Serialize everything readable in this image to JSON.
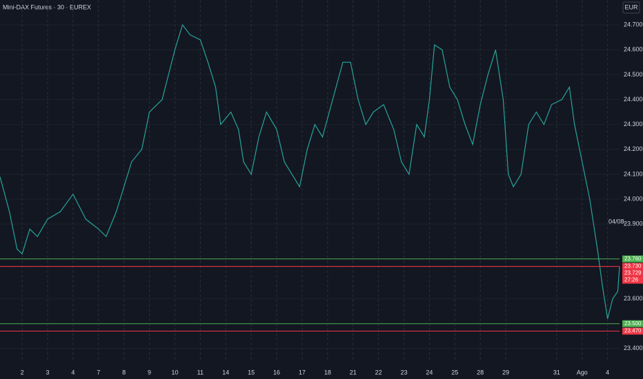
{
  "chart_data": {
    "type": "line",
    "title": "Mini-DAX Futures · 30 · EUREX",
    "currency": "EUR",
    "annotation": "04/08.",
    "x": [
      -0.87,
      -0.5,
      -0.2,
      0.0,
      0.3,
      0.6,
      1.0,
      1.5,
      2.0,
      2.5,
      3.0,
      3.3,
      3.7,
      4.0,
      4.3,
      4.7,
      5.0,
      5.5,
      6.0,
      6.3,
      6.6,
      7.0,
      7.3,
      7.6,
      7.8,
      8.2,
      8.5,
      8.7,
      9.0,
      9.3,
      9.6,
      10.0,
      10.3,
      10.6,
      10.9,
      11.2,
      11.5,
      11.8,
      12.2,
      12.6,
      12.9,
      13.2,
      13.5,
      13.8,
      14.2,
      14.6,
      14.9,
      15.2,
      15.5,
      15.8,
      16.0,
      16.2,
      16.5,
      16.8,
      17.1,
      17.4,
      17.7,
      18.0,
      18.3,
      18.6,
      18.9,
      19.1,
      19.3,
      19.6,
      19.9,
      20.2,
      20.5,
      20.8,
      21.2,
      21.5,
      21.7,
      22.0,
      22.3,
      22.6,
      22.8,
      23.0,
      23.2,
      23.4,
      23.47
    ],
    "series": [
      {
        "color": "#26a69a",
        "values": [
          24.09,
          23.95,
          23.8,
          23.78,
          23.88,
          23.85,
          23.92,
          23.95,
          24.02,
          23.92,
          23.88,
          23.85,
          23.95,
          24.05,
          24.15,
          24.2,
          24.35,
          24.4,
          24.6,
          24.7,
          24.66,
          24.64,
          24.55,
          24.45,
          24.3,
          24.35,
          24.28,
          24.15,
          24.1,
          24.25,
          24.35,
          24.28,
          24.15,
          24.1,
          24.05,
          24.2,
          24.3,
          24.25,
          24.4,
          24.55,
          24.55,
          24.4,
          24.3,
          24.35,
          24.38,
          24.28,
          24.15,
          24.1,
          24.3,
          24.25,
          24.4,
          24.62,
          24.6,
          24.45,
          24.4,
          24.3,
          24.22,
          24.38,
          24.5,
          24.6,
          24.4,
          24.1,
          24.05,
          24.1,
          24.3,
          24.35,
          24.3,
          24.38,
          24.4,
          24.45,
          24.3,
          24.15,
          24.0,
          23.8,
          23.65,
          23.52,
          23.6,
          23.63,
          23.729
        ]
      }
    ],
    "xlim": [
      -0.87,
      23.47
    ],
    "ylim": [
      23.347,
      24.8
    ],
    "grid": true,
    "xticks": [
      {
        "value": 0,
        "label": "2"
      },
      {
        "value": 1,
        "label": "3"
      },
      {
        "value": 2,
        "label": "4"
      },
      {
        "value": 3,
        "label": "7"
      },
      {
        "value": 4,
        "label": "8"
      },
      {
        "value": 5,
        "label": "9"
      },
      {
        "value": 6,
        "label": "10"
      },
      {
        "value": 7,
        "label": "11"
      },
      {
        "value": 8,
        "label": "14"
      },
      {
        "value": 9,
        "label": "15"
      },
      {
        "value": 10,
        "label": "16"
      },
      {
        "value": 11,
        "label": "17"
      },
      {
        "value": 12,
        "label": "18"
      },
      {
        "value": 13,
        "label": "21"
      },
      {
        "value": 14,
        "label": "22"
      },
      {
        "value": 15,
        "label": "23"
      },
      {
        "value": 16,
        "label": "24"
      },
      {
        "value": 17,
        "label": "25"
      },
      {
        "value": 18,
        "label": "28"
      },
      {
        "value": 19,
        "label": "29"
      },
      {
        "value": 21,
        "label": "31"
      },
      {
        "value": 22,
        "label": "Ago"
      },
      {
        "value": 23,
        "label": "4"
      }
    ],
    "yticks": [
      {
        "value": 24.7,
        "label": "24.700"
      },
      {
        "value": 24.6,
        "label": "24.600"
      },
      {
        "value": 24.5,
        "label": "24.500"
      },
      {
        "value": 24.4,
        "label": "24.400"
      },
      {
        "value": 24.3,
        "label": "24.300"
      },
      {
        "value": 24.2,
        "label": "24.200"
      },
      {
        "value": 24.1,
        "label": "24.100"
      },
      {
        "value": 24.0,
        "label": "24.000"
      },
      {
        "value": 23.9,
        "label": "23.900"
      },
      {
        "value": 23.6,
        "label": "23.600"
      },
      {
        "value": 23.4,
        "label": "23.400"
      }
    ],
    "levels": [
      {
        "value": 23.76,
        "label": "23.760",
        "color": "#4caf50"
      },
      {
        "value": 23.73,
        "label": "23.730",
        "color": "#f23645"
      },
      {
        "value": 23.5,
        "label": "23.500",
        "color": "#4caf50"
      },
      {
        "value": 23.47,
        "label": "23.470",
        "color": "#f23645"
      }
    ],
    "last_price": {
      "value": 23.729,
      "label": "23.729",
      "color": "#f23645"
    },
    "countdown": "27:26"
  }
}
